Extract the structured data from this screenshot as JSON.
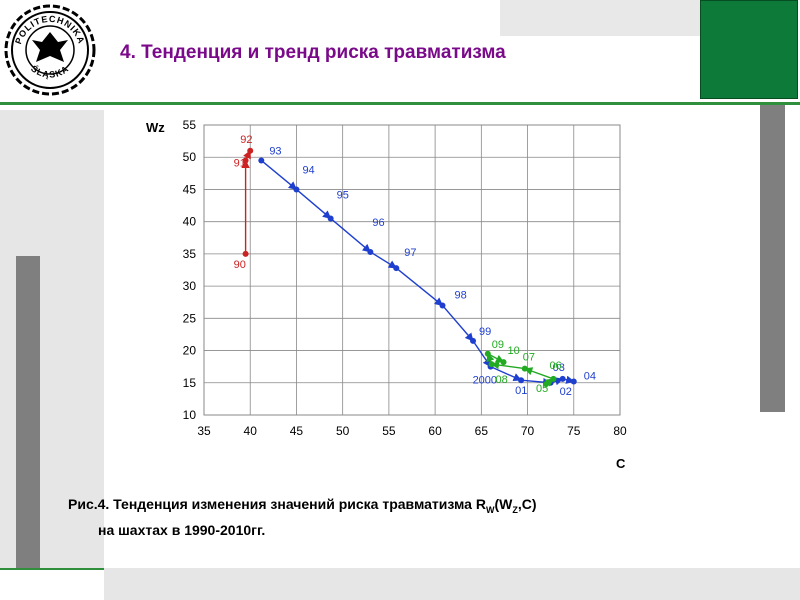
{
  "slide": {
    "title": "4. Тенденция и тренд риска травматизма",
    "logo_text": "POLITECHNIKA ŚLĄSKA",
    "caption_line1_pre": "Рис.4. Тенденция изменения значений риска травматизма R",
    "caption_sub_w": "W",
    "caption_mid": "(W",
    "caption_sub_z": "Z",
    "caption_post": ",C)",
    "caption_line2": "на шахтах в 1990-2010гг."
  },
  "colors": {
    "title": "#7a0a8a",
    "red_series": "#cc2222",
    "blue_series": "#1f3fcf",
    "green_series": "#22aa22",
    "green_accent": "#0e7a3a"
  },
  "chart_data": {
    "type": "scatter",
    "xlabel": "C",
    "ylabel": "Wz",
    "xlim": [
      35,
      80
    ],
    "ylim": [
      10,
      55
    ],
    "xticks": [
      35,
      40,
      45,
      50,
      55,
      60,
      65,
      70,
      75,
      80
    ],
    "yticks": [
      10,
      15,
      20,
      25,
      30,
      35,
      40,
      45,
      50,
      55
    ],
    "grid": true,
    "series": [
      {
        "color": "#cc2222",
        "points": [
          {
            "label": "90",
            "x": 39.5,
            "y": 35.0
          },
          {
            "label": "91",
            "x": 39.5,
            "y": 49.5
          },
          {
            "label": "92",
            "x": 40.0,
            "y": 51.0
          }
        ]
      },
      {
        "color": "#1f3fcf",
        "points": [
          {
            "label": "93",
            "x": 41.2,
            "y": 49.5
          },
          {
            "label": "94",
            "x": 45.0,
            "y": 45.0
          },
          {
            "label": "95",
            "x": 48.7,
            "y": 40.5
          },
          {
            "label": "96",
            "x": 53.0,
            "y": 35.3
          },
          {
            "label": "97",
            "x": 55.8,
            "y": 32.8
          },
          {
            "label": "98",
            "x": 60.8,
            "y": 27.0
          },
          {
            "label": "99",
            "x": 64.1,
            "y": 21.5
          },
          {
            "label": "2000",
            "x": 66.0,
            "y": 17.5
          },
          {
            "label": "01",
            "x": 69.3,
            "y": 15.4
          },
          {
            "label": "02",
            "x": 72.5,
            "y": 15.0
          },
          {
            "label": "03",
            "x": 73.8,
            "y": 15.6
          },
          {
            "label": "04",
            "x": 75.0,
            "y": 15.2
          }
        ]
      },
      {
        "color": "#22aa22",
        "points": [
          {
            "label": "05",
            "x": 72.0,
            "y": 14.8
          },
          {
            "label": "06",
            "x": 72.8,
            "y": 15.6
          },
          {
            "label": "07",
            "x": 69.7,
            "y": 17.2
          },
          {
            "label": "08",
            "x": 66.1,
            "y": 17.9
          },
          {
            "label": "09",
            "x": 65.7,
            "y": 19.5
          },
          {
            "label": "10",
            "x": 67.4,
            "y": 18.2
          }
        ]
      }
    ]
  }
}
